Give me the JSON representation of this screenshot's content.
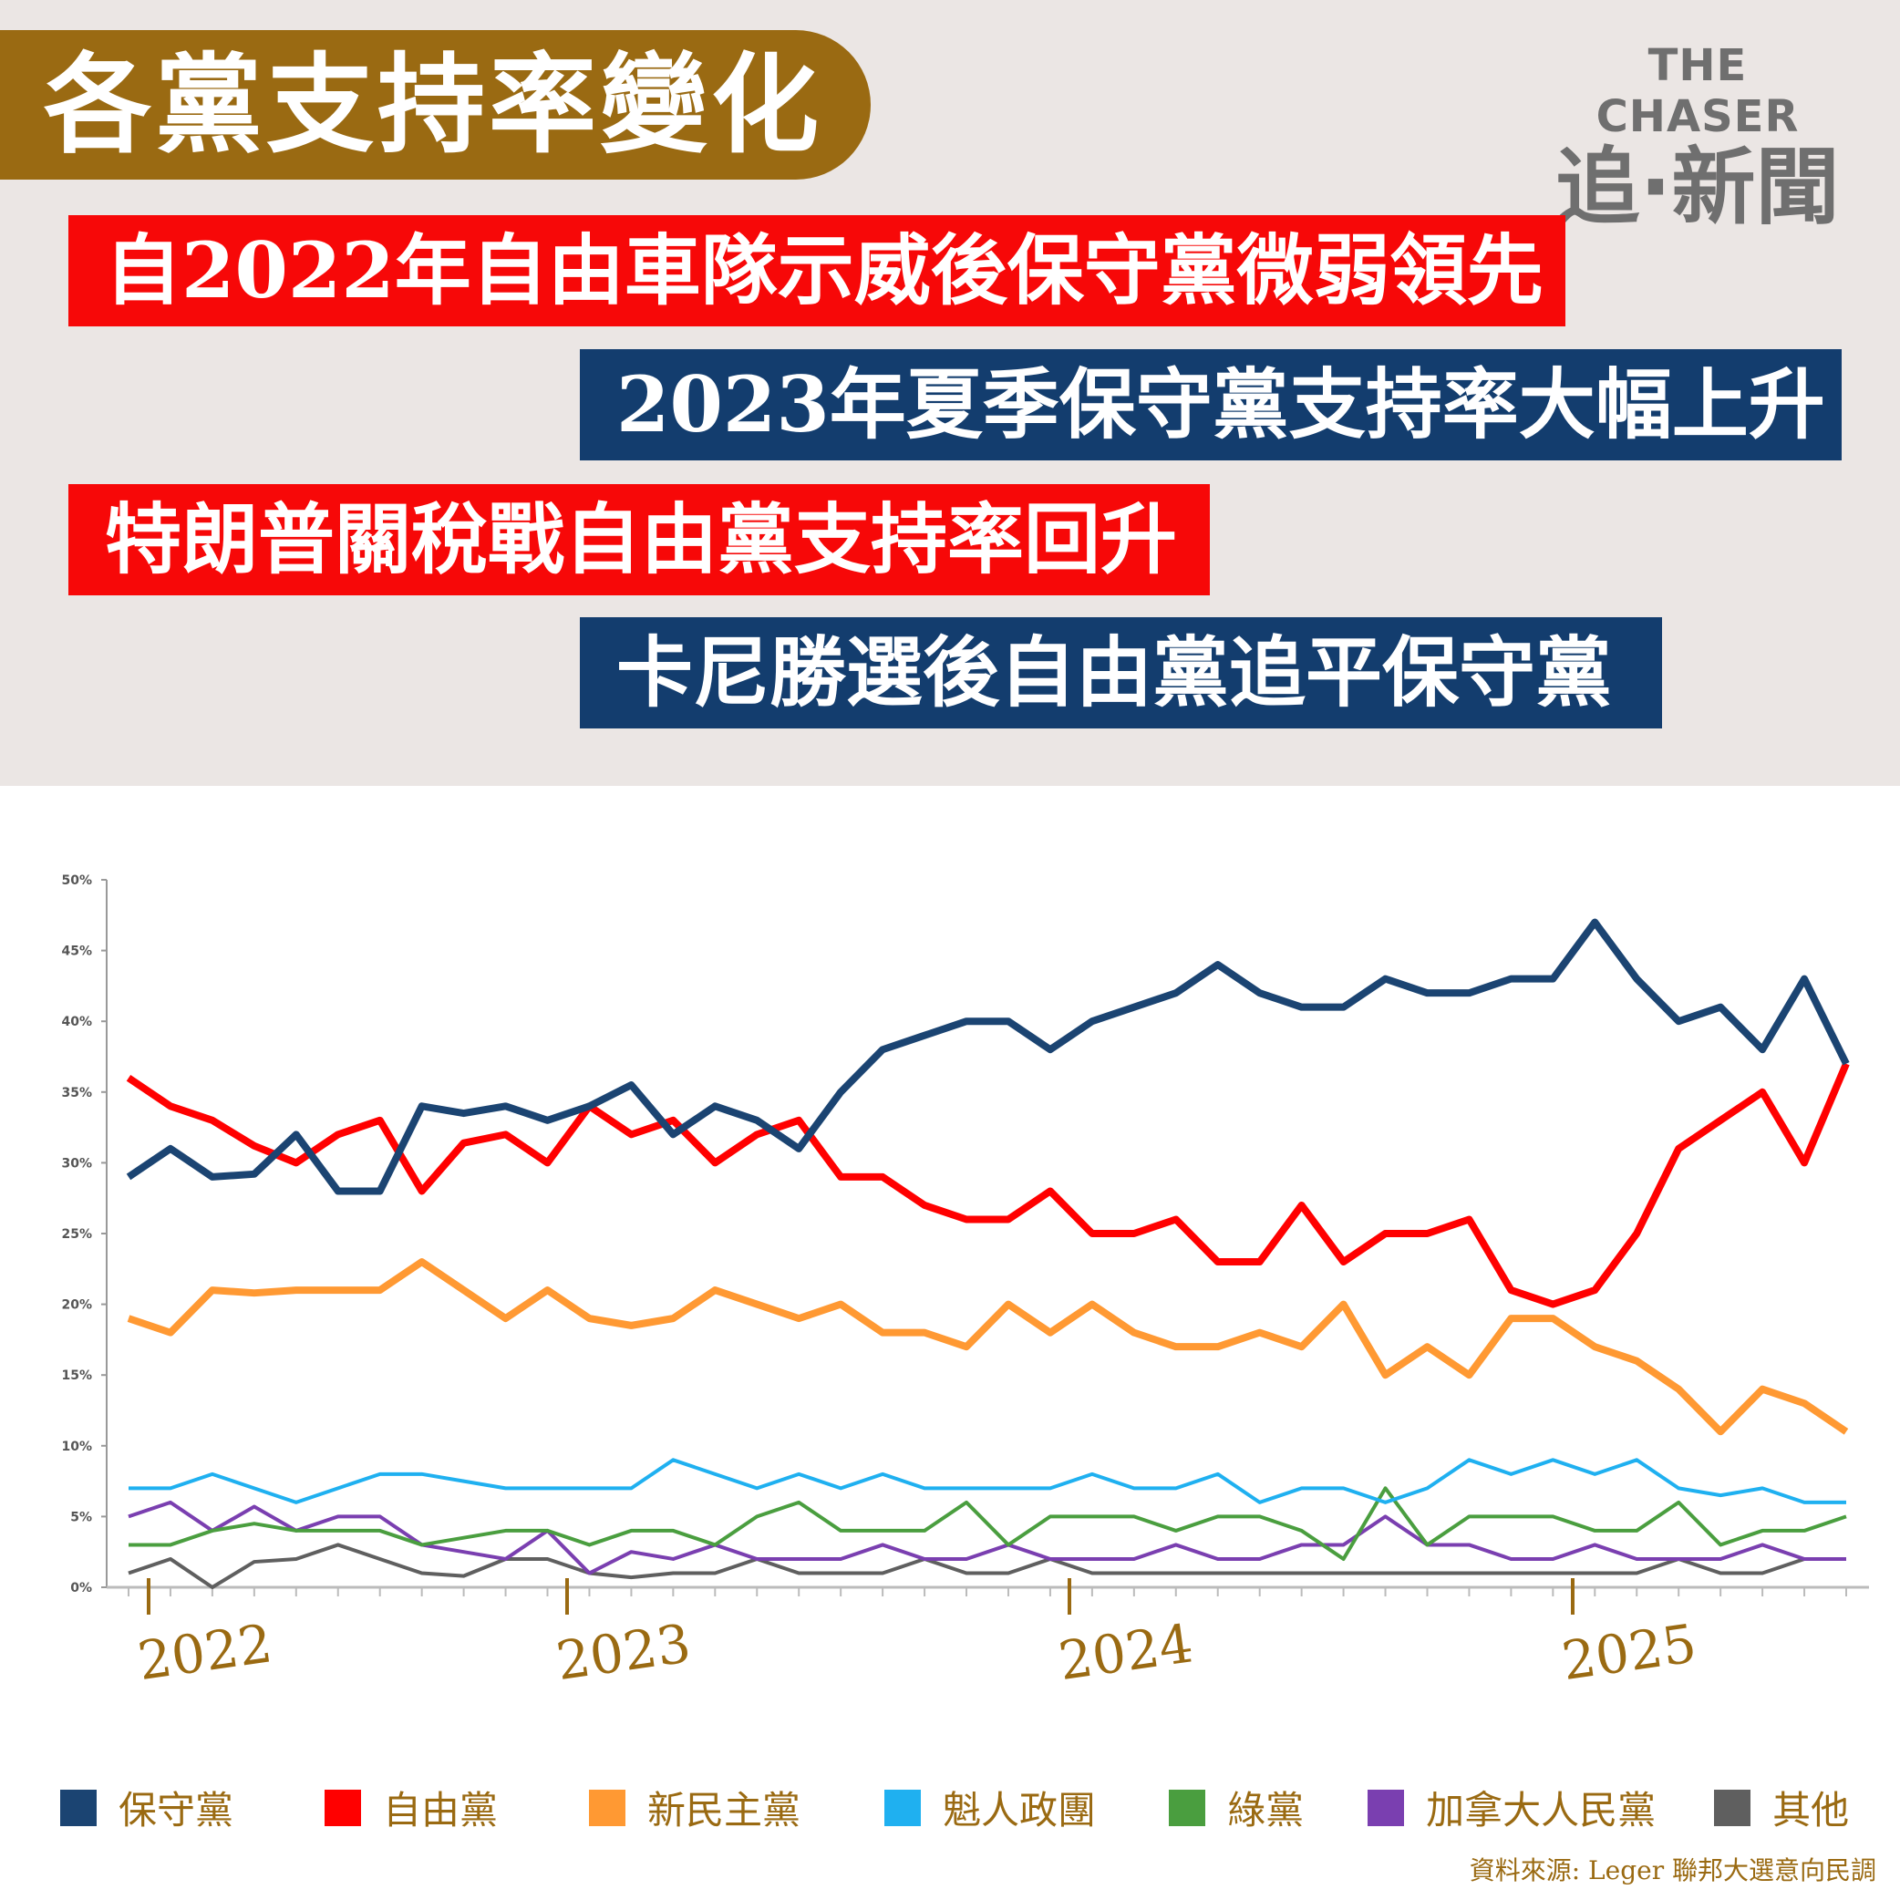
{
  "title": "各黨支持率變化",
  "logo": {
    "en": "THE CHASER",
    "zh": "追·新聞"
  },
  "headlines": [
    "自2022年自由車隊示威後保守黨微弱領先",
    "2023年夏季保守黨支持率大幅上升",
    "特朗普關稅戰自由黨支持率回升",
    "卡尼勝選後自由黨追平保守黨"
  ],
  "source": "資料來源: Leger 聯邦大選意向民調",
  "chart_data": {
    "type": "line",
    "ylim": [
      0,
      50
    ],
    "yticks": [
      "0%",
      "5%",
      "10%",
      "15%",
      "20%",
      "25%",
      "30%",
      "35%",
      "40%",
      "45%",
      "50%"
    ],
    "year_labels": [
      "2022",
      "2023",
      "2024",
      "2025"
    ],
    "legend_position": "bottom",
    "series": [
      {
        "name": "保守黨",
        "color": "#1b4472",
        "values": [
          29,
          31,
          29,
          29.2,
          32,
          28,
          28,
          34,
          33.5,
          34,
          33,
          34,
          35.5,
          32,
          34,
          33,
          31,
          35,
          38,
          39,
          40,
          40,
          38,
          40,
          41,
          42,
          44,
          42,
          41,
          41,
          43,
          42,
          42,
          43,
          43,
          47,
          43,
          40,
          41,
          38,
          43,
          37
        ]
      },
      {
        "name": "自由黨",
        "color": "#ff0000",
        "values": [
          36,
          34,
          33,
          31.2,
          30,
          32,
          33,
          28,
          31.4,
          32,
          30,
          34,
          32,
          33,
          30,
          32,
          33,
          29,
          29,
          27,
          26,
          26,
          28,
          25,
          25,
          26,
          23,
          23,
          27,
          23,
          25,
          25,
          26,
          21,
          20,
          21,
          25,
          31,
          33,
          35,
          30,
          37
        ]
      },
      {
        "name": "新民主黨",
        "color": "#ff9933",
        "values": [
          19,
          18,
          21,
          20.8,
          21,
          21,
          21,
          23,
          21,
          19,
          21,
          19,
          18.5,
          19,
          21,
          20,
          19,
          20,
          18,
          18,
          17,
          20,
          18,
          20,
          18,
          17,
          17,
          18,
          17,
          20,
          15,
          17,
          15,
          19,
          19,
          17,
          16,
          14,
          11,
          14,
          13,
          11
        ]
      },
      {
        "name": "魁人政團",
        "color": "#1fb0f0",
        "values": [
          7,
          7,
          8,
          7,
          6,
          7,
          8,
          8,
          7.5,
          7,
          7,
          7,
          7,
          9,
          8,
          7,
          8,
          7,
          8,
          7,
          7,
          7,
          7,
          8,
          7,
          7,
          8,
          6,
          7,
          7,
          6,
          7,
          9,
          8,
          9,
          8,
          9,
          7,
          6.5,
          7,
          6,
          6
        ]
      },
      {
        "name": "綠黨",
        "color": "#4a9e3f",
        "values": [
          3,
          3,
          4,
          4.5,
          4,
          4,
          4,
          3,
          3.5,
          4,
          4,
          3,
          4,
          4,
          3,
          5,
          6,
          4,
          4,
          4,
          6,
          3,
          5,
          5,
          5,
          4,
          5,
          5,
          4,
          2,
          7,
          3,
          5,
          5,
          5,
          4,
          4,
          6,
          3,
          4,
          4,
          5
        ]
      },
      {
        "name": "加拿大人民黨",
        "color": "#7a3fb0",
        "values": [
          5,
          6,
          4,
          5.7,
          4,
          5,
          5,
          3,
          2.5,
          2,
          4,
          1,
          2.5,
          2,
          3,
          2,
          2,
          2,
          3,
          2,
          2,
          3,
          2,
          2,
          2,
          3,
          2,
          2,
          3,
          3,
          5,
          3,
          3,
          2,
          2,
          3,
          2,
          2,
          2,
          3,
          2,
          2
        ]
      },
      {
        "name": "其他",
        "color": "#5f5f5f",
        "values": [
          1,
          2,
          0,
          1.8,
          2,
          3,
          2,
          1,
          0.8,
          2,
          2,
          1,
          0.7,
          1,
          1,
          2,
          1,
          1,
          1,
          2,
          1,
          1,
          2,
          1,
          1,
          1,
          1,
          1,
          1,
          1,
          1,
          1,
          1,
          1,
          1,
          1,
          1,
          2,
          1,
          1,
          2,
          2
        ]
      }
    ]
  }
}
